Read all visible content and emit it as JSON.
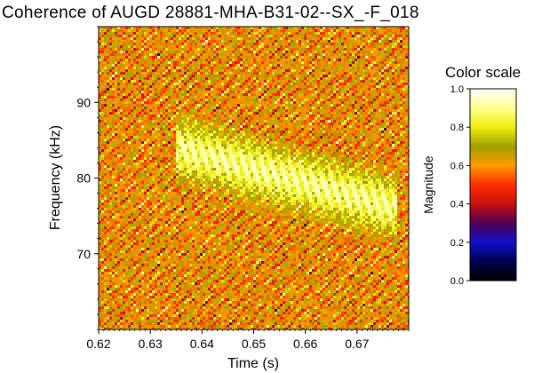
{
  "chart_data": {
    "type": "heatmap",
    "title": "Coherence of AUGD 28881-MHA-B31-02--SX_-F_018",
    "xlabel": "Time (s)",
    "ylabel": "Frequency (kHz)",
    "xlim": [
      0.62,
      0.68
    ],
    "ylim": [
      60,
      100
    ],
    "xticks": [
      0.62,
      0.63,
      0.64,
      0.65,
      0.66,
      0.67
    ],
    "xtick_labels": [
      "0.62",
      "0.63",
      "0.64",
      "0.65",
      "0.66",
      "0.67"
    ],
    "yticks": [
      70,
      80,
      90
    ],
    "ytick_labels": [
      "70",
      "80",
      "90"
    ],
    "colorbar": {
      "title": "Color scale",
      "label": "Magnitude",
      "range": [
        0,
        1
      ],
      "ticks": [
        0.0,
        0.2,
        0.4,
        0.6,
        0.8,
        1.0
      ],
      "tick_labels": [
        "0.0",
        "0.2",
        "0.4",
        "0.6",
        "0.8",
        "1.0"
      ],
      "colormap": [
        {
          "v": 0.0,
          "color": "#000000"
        },
        {
          "v": 0.1,
          "color": "#000050"
        },
        {
          "v": 0.2,
          "color": "#1010c8"
        },
        {
          "v": 0.3,
          "color": "#500050"
        },
        {
          "v": 0.4,
          "color": "#c81010"
        },
        {
          "v": 0.5,
          "color": "#ff3000"
        },
        {
          "v": 0.6,
          "color": "#ff9a00"
        },
        {
          "v": 0.7,
          "color": "#a0a000"
        },
        {
          "v": 0.8,
          "color": "#eeee10"
        },
        {
          "v": 0.9,
          "color": "#ffff90"
        },
        {
          "v": 1.0,
          "color": "#ffffff"
        }
      ]
    },
    "feature": {
      "description_free": true,
      "t_start": 0.635,
      "t_end": 0.678,
      "f_start": 84,
      "f_end": 76,
      "band_width_khz": 7,
      "peak_magnitude": 0.97
    }
  }
}
